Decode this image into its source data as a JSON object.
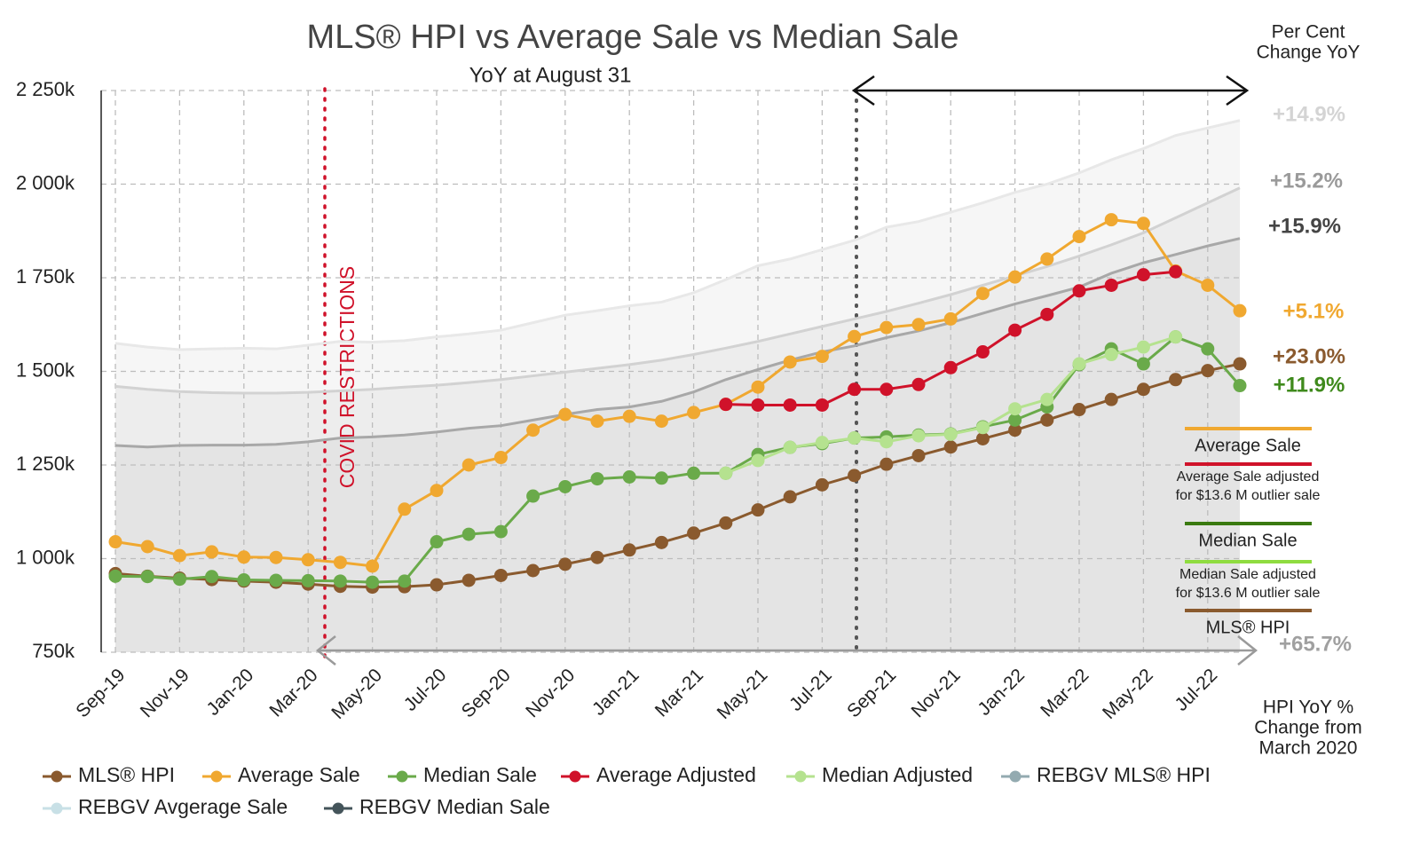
{
  "chart_data": {
    "type": "line",
    "title": "MLS® HPI vs Average Sale vs Median Sale",
    "subtitle": "YoY at August 31",
    "categories": [
      "Sep-19",
      null,
      "Nov-19",
      null,
      "Jan-20",
      null,
      "Mar-20",
      null,
      "May-20",
      null,
      "Jul-20",
      null,
      "Sep-20",
      null,
      "Nov-20",
      null,
      "Jan-21",
      null,
      "Mar-21",
      null,
      "May-21",
      null,
      "Jul-21",
      null,
      "Sep-21",
      null,
      "Nov-21",
      null,
      "Jan-22",
      null,
      "Mar-22",
      null,
      "May-22",
      null,
      "Jul-22",
      null
    ],
    "ylim": [
      750,
      2250
    ],
    "yticks": [
      {
        "value": 750,
        "label": "750k"
      },
      {
        "value": 1000,
        "label": "1 000k"
      },
      {
        "value": 1250,
        "label": "1 250k"
      },
      {
        "value": 1500,
        "label": "1 500k"
      },
      {
        "value": 1750,
        "label": "1 750k"
      },
      {
        "value": 2000,
        "label": "2 000k"
      },
      {
        "value": 2250,
        "label": "2 250k"
      }
    ],
    "grid": true,
    "series": [
      {
        "name": "MLS® HPI",
        "color": "#8a5a2e",
        "markers": true,
        "values": [
          960,
          953,
          948,
          944,
          940,
          937,
          932,
          926,
          924,
          925,
          930,
          942,
          955,
          968,
          985,
          1003,
          1023,
          1043,
          1068,
          1095,
          1130,
          1165,
          1197,
          1222,
          1252,
          1275,
          1298,
          1320,
          1343,
          1370,
          1398,
          1425,
          1452,
          1478,
          1502,
          1520
        ]
      },
      {
        "name": "Average Sale",
        "color": "#f0a830",
        "markers": true,
        "values": [
          1045,
          1032,
          1008,
          1018,
          1004,
          1003,
          997,
          990,
          980,
          1132,
          1182,
          1250,
          1270,
          1343,
          1385,
          1367,
          1380,
          1367,
          1390,
          1412,
          1458,
          1525,
          1540,
          1593,
          1617,
          1625,
          1640,
          1708,
          1752,
          1800,
          1860,
          1905,
          1895,
          1768,
          1730,
          1662
        ]
      },
      {
        "name": "Median Sale",
        "color": "#6aaa4a",
        "markers": true,
        "values": [
          953,
          952,
          945,
          952,
          943,
          942,
          941,
          940,
          937,
          940,
          1045,
          1065,
          1072,
          1167,
          1192,
          1213,
          1218,
          1215,
          1228,
          1228,
          1278,
          1297,
          1307,
          1322,
          1325,
          1330,
          1333,
          1352,
          1370,
          1405,
          1518,
          1560,
          1520,
          1592,
          1560,
          1462
        ]
      },
      {
        "name": "Average Adjusted",
        "color": "#d0122a",
        "markers": true,
        "values": [
          null,
          null,
          null,
          null,
          null,
          null,
          null,
          null,
          null,
          null,
          null,
          null,
          null,
          null,
          null,
          null,
          null,
          null,
          null,
          1412,
          1410,
          1410,
          1410,
          1452,
          1452,
          1465,
          1510,
          1552,
          1610,
          1652,
          1715,
          1730,
          1758,
          1766,
          null,
          null
        ]
      },
      {
        "name": "Median Adjusted",
        "color": "#b5e28f",
        "markers": true,
        "values": [
          null,
          null,
          null,
          null,
          null,
          null,
          null,
          null,
          null,
          null,
          null,
          null,
          null,
          null,
          null,
          null,
          null,
          null,
          null,
          1228,
          1262,
          1297,
          1310,
          1322,
          1312,
          1328,
          1332,
          1350,
          1400,
          1425,
          1520,
          1545,
          1565,
          1592,
          null,
          null
        ]
      },
      {
        "name": "REBGV MLS® HPI",
        "color": "#93aab0",
        "line_color": "#d2d2d2",
        "markers": false,
        "values": [
          1460,
          1452,
          1446,
          1443,
          1442,
          1442,
          1444,
          1448,
          1452,
          1458,
          1463,
          1470,
          1478,
          1488,
          1498,
          1508,
          1518,
          1530,
          1545,
          1562,
          1580,
          1600,
          1620,
          1640,
          1660,
          1682,
          1705,
          1730,
          1755,
          1780,
          1808,
          1838,
          1870,
          1910,
          1950,
          1990
        ]
      },
      {
        "name": "REBGV Avgerage Sale",
        "color": "#c8e0e6",
        "line_color": "#e8e8e8",
        "markers": false,
        "values": [
          1575,
          1565,
          1558,
          1560,
          1562,
          1560,
          1570,
          1580,
          1578,
          1582,
          1592,
          1600,
          1610,
          1630,
          1650,
          1662,
          1675,
          1685,
          1710,
          1745,
          1782,
          1800,
          1825,
          1850,
          1885,
          1900,
          1925,
          1950,
          1978,
          2000,
          2030,
          2065,
          2095,
          2130,
          2150,
          2170
        ]
      },
      {
        "name": "REBGV Median Sale",
        "color": "#44545a",
        "line_color": "#a8a8a8",
        "markers": false,
        "values": [
          1302,
          1298,
          1302,
          1303,
          1303,
          1305,
          1312,
          1322,
          1325,
          1330,
          1338,
          1348,
          1355,
          1370,
          1385,
          1398,
          1405,
          1420,
          1445,
          1478,
          1505,
          1530,
          1552,
          1568,
          1590,
          1608,
          1630,
          1655,
          1680,
          1702,
          1725,
          1762,
          1790,
          1812,
          1835,
          1855
        ]
      }
    ],
    "covid_label": "COVID RESTRICTIONS",
    "yoy_header": [
      "Per Cent",
      "Change YoY"
    ],
    "yoy_labels": [
      {
        "text": "+14.9%",
        "color": "#d4d4d4"
      },
      {
        "text": "+15.2%",
        "color": "#9a9a9a"
      },
      {
        "text": "+15.9%",
        "color": "#454545"
      },
      {
        "text": "+5.1%",
        "color": "#f0a830"
      },
      {
        "text": "+23.0%",
        "color": "#8a5a2e"
      },
      {
        "text": "+11.9%",
        "color": "#3f8a1c"
      },
      {
        "text": "+65.7%",
        "color": "#a0a0a0"
      }
    ],
    "hpi_note": [
      "HPI YoY %",
      "Change from",
      "March 2020"
    ],
    "key": [
      {
        "lines": [
          "Average Sale"
        ],
        "color": "#f0a830"
      },
      {
        "lines": [
          "Average Sale adjusted",
          "for $13.6 M outlier sale"
        ],
        "color": "#d0122a"
      },
      {
        "lines": [
          "Median Sale"
        ],
        "color": "#3a7a10"
      },
      {
        "lines": [
          "Median Sale adjusted",
          "for $13.6 M outlier sale"
        ],
        "color": "#8fdc40"
      },
      {
        "lines": [
          "MLS® HPI"
        ],
        "color": "#8a5a2e"
      }
    ]
  }
}
